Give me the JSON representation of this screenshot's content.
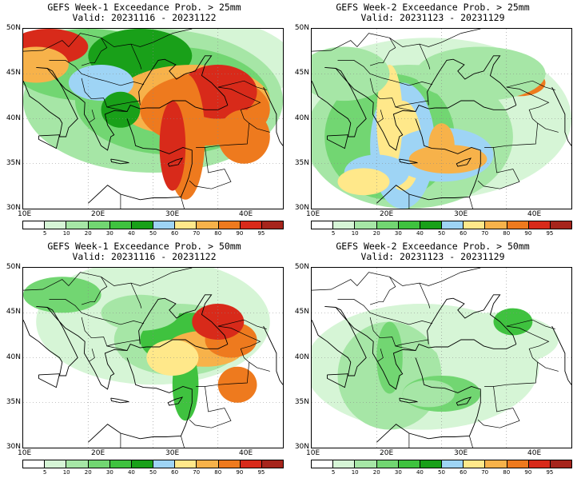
{
  "palette": {
    "levels": [
      "5",
      "10",
      "20",
      "30",
      "40",
      "50",
      "60",
      "70",
      "80",
      "90",
      "95"
    ],
    "colors": [
      "#ffffff",
      "#d6f5d6",
      "#a6e6a6",
      "#72d672",
      "#3fc23f",
      "#19a019",
      "#9ed4f5",
      "#ffe88a",
      "#f7b24a",
      "#ee7a1e",
      "#d82a1a",
      "#a6251c"
    ]
  },
  "lat_labels": [
    "50N",
    "45N",
    "40N",
    "35N",
    "30N"
  ],
  "lon_labels": [
    "10E",
    "20E",
    "30E",
    "40E"
  ],
  "panels": [
    {
      "title": "GEFS Week-1 Exceedance Prob. > 25mm",
      "valid": "Valid: 20231116 - 20231122"
    },
    {
      "title": "GEFS Week-2 Exceedance Prob. > 25mm",
      "valid": "Valid: 20231123 - 20231129"
    },
    {
      "title": "GEFS Week-1 Exceedance Prob. > 50mm",
      "valid": "Valid: 20231116 - 20231122"
    },
    {
      "title": "GEFS Week-2 Exceedance Prob. > 50mm",
      "valid": "Valid: 20231123 - 20231129"
    }
  ]
}
